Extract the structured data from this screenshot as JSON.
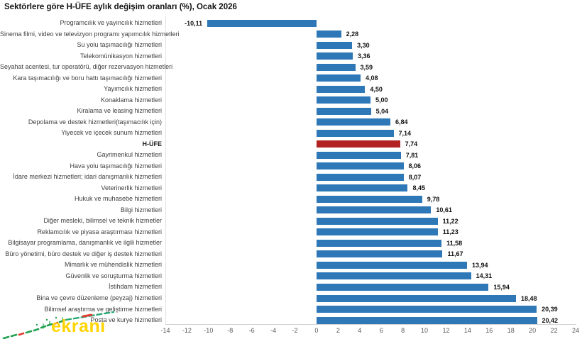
{
  "watermark": {
    "text": "ekranı",
    "text_color": "#ffd400"
  },
  "colors": {
    "bar": "#2e78b8",
    "highlight": "#b22222",
    "axis_line": "#d2d2d2",
    "plot_border": "#e3e3e3",
    "tick_text": "#595959",
    "label_text": "#3f3f3f",
    "value_text": "#111111",
    "watermark_green": "#21a150",
    "watermark_red": "#e03c31"
  },
  "chart_data": {
    "type": "bar",
    "orientation": "horizontal",
    "title": "Sektörlere göre H-ÜFE aylık değişim oranları (%), Ocak 2026",
    "xlabel": "",
    "ylabel": "",
    "grid": false,
    "legend": false,
    "xlim": [
      -14,
      24
    ],
    "xticks": [
      -14,
      -12,
      -10,
      -8,
      -6,
      -4,
      -2,
      0,
      2,
      4,
      6,
      8,
      10,
      12,
      14,
      16,
      18,
      20,
      22,
      24
    ],
    "highlight_index": 11,
    "categories": [
      "Programcılık ve yayıncılık hizmetleri",
      "Sinema filmi, video ve televizyon programı yapımcılık hizmetleri",
      "Su yolu taşımacılığı hizmetleri",
      "Telekomünikasyon hizmetleri",
      "Seyahat acentesi, tur operatörü, diğer rezervasyon hizmetleri",
      "Kara taşımacılığı ve boru hattı taşımacılığı hizmetleri",
      "Yayımcılık hizmetleri",
      "Konaklama hizmetleri",
      "Kiralama ve leasing hizmetleri",
      "Depolama ve destek hizmetleri(taşımacılık için)",
      "Yiyecek ve içecek sunum hizmetleri",
      "H-ÜFE",
      "Gayrimenkul hizmetleri",
      "Hava yolu taşımacılığı hizmetleri",
      "İdare merkezi hizmetleri; idari danışmanlık hizmetleri",
      "Veterinerlik hizmetleri",
      "Hukuk ve muhasebe hizmetleri",
      "Bilgi hizmetleri",
      "Diğer mesleki, bilimsel ve teknik hizmetler",
      "Reklamcılık ve piyasa araştırması hizmetleri",
      "Bilgisayar programlama, danışmanlık ve ilgili hizmetler",
      "Büro yönetimi, büro destek ve diğer iş destek hizmetleri",
      "Mimarlık ve mühendislik hizmetleri",
      "Güvenlik ve soruşturma hizmetleri",
      "İstihdam hizmetleri",
      "Bina ve çevre düzenleme (peyzaj) hizmetleri",
      "Bilimsel araştırma ve geliştirme hizmetleri",
      "Posta ve kurye hizmetleri"
    ],
    "values": [
      -10.11,
      2.28,
      3.3,
      3.36,
      3.59,
      4.08,
      4.5,
      5.0,
      5.04,
      6.84,
      7.14,
      7.74,
      7.81,
      8.06,
      8.07,
      8.45,
      9.78,
      10.61,
      11.22,
      11.23,
      11.58,
      11.67,
      13.94,
      14.31,
      15.94,
      18.48,
      20.39,
      20.42
    ],
    "value_labels": [
      "-10,11",
      "2,28",
      "3,30",
      "3,36",
      "3,59",
      "4,08",
      "4,50",
      "5,00",
      "5,04",
      "6,84",
      "7,14",
      "7,74",
      "7,81",
      "8,06",
      "8,07",
      "8,45",
      "9,78",
      "10,61",
      "11,22",
      "11,23",
      "11,58",
      "11,67",
      "13,94",
      "14,31",
      "15,94",
      "18,48",
      "20,39",
      "20,42"
    ]
  }
}
